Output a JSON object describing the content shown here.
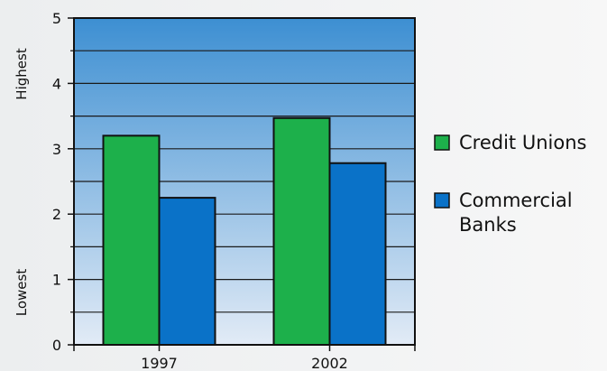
{
  "chart_data": {
    "type": "bar",
    "categories": [
      "1997",
      "2002"
    ],
    "series": [
      {
        "name": "Credit Unions",
        "values": [
          3.2,
          3.47
        ],
        "color": "#1db04b"
      },
      {
        "name": "Commercial Banks",
        "values": [
          2.25,
          2.78
        ],
        "color": "#0a72c8"
      }
    ],
    "ylim": [
      0,
      5
    ],
    "yticks": [
      0,
      1,
      2,
      3,
      4,
      5
    ],
    "y_axis_words": {
      "top": "Highest",
      "bottom": "Lowest"
    },
    "legend": [
      {
        "lines": [
          "Credit Unions"
        ],
        "color": "#1db04b"
      },
      {
        "lines": [
          "Commercial",
          "Banks"
        ],
        "color": "#0a72c8"
      }
    ],
    "legend_position": "right",
    "grid": true,
    "plot_background": {
      "top": "#3d8fd2",
      "bottom": "#e2ebf6"
    }
  }
}
